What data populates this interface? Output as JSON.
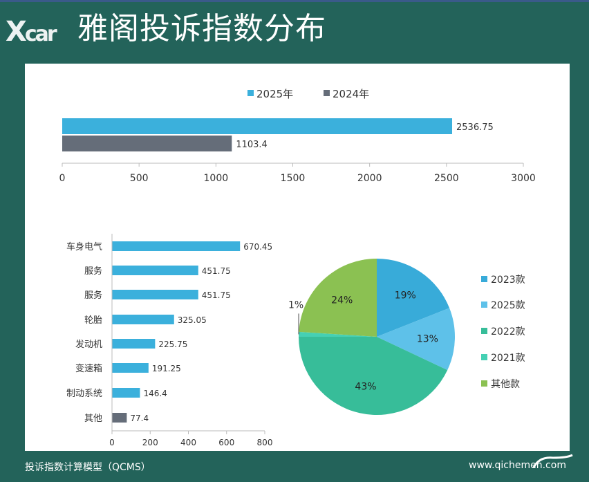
{
  "title": "雅阁投诉指数分布",
  "logo_text": "Xcar",
  "footer": {
    "left": "投诉指数计算模型（QCMS）",
    "right": "www.qichemen.com"
  },
  "chart_data": [
    {
      "type": "bar",
      "orientation": "horizontal",
      "series": [
        {
          "name": "2025年",
          "values": [
            2536.75
          ],
          "color": "#3bb0dc"
        },
        {
          "name": "2024年",
          "values": [
            1103.4
          ],
          "color": "#656d79"
        }
      ],
      "value_labels": [
        "2536.75",
        "1103.4"
      ],
      "xlim": [
        0,
        3000
      ],
      "xticks": [
        0,
        500,
        1000,
        1500,
        2000,
        2500,
        3000
      ],
      "legend": "top",
      "grid": false
    },
    {
      "type": "bar",
      "orientation": "horizontal",
      "categories": [
        "车身电气",
        "服务",
        "服务",
        "轮胎",
        "发动机",
        "变速箱",
        "制动系统",
        "其他"
      ],
      "values": [
        670.45,
        451.75,
        451.75,
        325.05,
        225.75,
        191.25,
        146.4,
        77.4
      ],
      "value_labels": [
        "670.45",
        "451.75",
        "451.75",
        "325.05",
        "225.75",
        "191.25",
        "146.4",
        "77.4"
      ],
      "colors": [
        "#3bb0dc",
        "#3bb0dc",
        "#3bb0dc",
        "#3bb0dc",
        "#3bb0dc",
        "#3bb0dc",
        "#3bb0dc",
        "#656d79"
      ],
      "xlim": [
        0,
        800
      ],
      "xticks": [
        0,
        200,
        400,
        600,
        800
      ],
      "grid": false
    },
    {
      "type": "pie",
      "slices": [
        {
          "label": "2023款",
          "value": 19,
          "text": "19%",
          "color": "#38abd9"
        },
        {
          "label": "2025款",
          "value": 13,
          "text": "13%",
          "color": "#5ec1e9"
        },
        {
          "label": "2022款",
          "value": 43,
          "text": "43%",
          "color": "#37bd99"
        },
        {
          "label": "2021款",
          "value": 1,
          "text": "1%",
          "color": "#45d0b3"
        },
        {
          "label": "其他款",
          "value": 24,
          "text": "24%",
          "color": "#8bc152"
        }
      ],
      "start": "top",
      "direction": "clockwise",
      "legend": "right"
    }
  ]
}
